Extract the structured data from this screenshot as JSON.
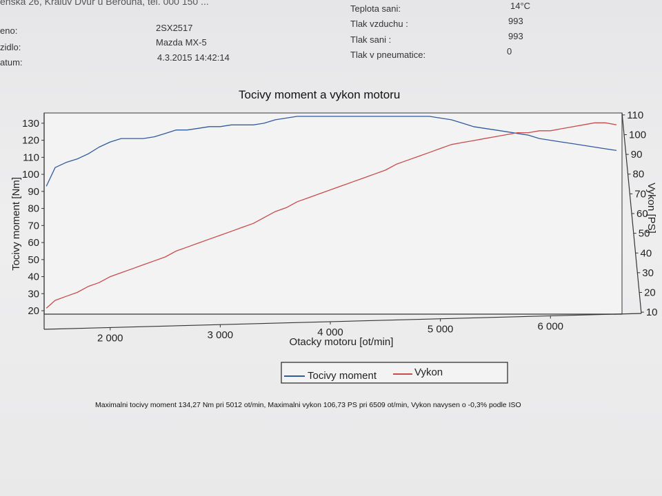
{
  "header": {
    "address_partial": "enska 26, Kraluv Dvur u Berouna, tel. 000 150 ...",
    "fields_left": [
      {
        "label": "eno:",
        "value": "2SX2517"
      },
      {
        "label": "zidlo:",
        "value": "Mazda MX-5"
      },
      {
        "label": "atum:",
        "value": "4.3.2015 14:42:14"
      }
    ],
    "fields_right": [
      {
        "label": "Teplota sani:",
        "value": "14°C"
      },
      {
        "label": "Tlak vzduchu :",
        "value": "993"
      },
      {
        "label": "Tlak sani :",
        "value": "993"
      },
      {
        "label": "Tlak v pneumatice:",
        "value": "0"
      }
    ]
  },
  "chart_data": {
    "type": "line",
    "title": "Tocivy moment a vykon motoru",
    "xlabel": "Otacky motoru [ot/min]",
    "ylabel_left": "Tocivy moment [Nm]",
    "ylabel_right": "Vykon [PS]",
    "xlim": [
      1400,
      6650
    ],
    "ylim_left": [
      18,
      136
    ],
    "ylim_right": [
      9,
      111
    ],
    "x_ticks": [
      2000,
      3000,
      4000,
      5000,
      6000
    ],
    "x_tick_labels": [
      "2 000",
      "3 000",
      "4 000",
      "5 000",
      "6 000"
    ],
    "y_left_ticks": [
      20,
      30,
      40,
      50,
      60,
      70,
      80,
      90,
      100,
      110,
      120,
      130
    ],
    "y_right_ticks": [
      10,
      20,
      30,
      40,
      50,
      60,
      70,
      80,
      90,
      100,
      110
    ],
    "legend_position": "bottom-center",
    "series": [
      {
        "name": "Tocivy moment",
        "color": "#2f5a9c",
        "axis": "left",
        "x": [
          1420,
          1500,
          1600,
          1700,
          1800,
          1900,
          2000,
          2100,
          2200,
          2300,
          2400,
          2500,
          2600,
          2700,
          2800,
          2900,
          3000,
          3100,
          3200,
          3300,
          3400,
          3500,
          3600,
          3700,
          3800,
          3900,
          4000,
          4100,
          4200,
          4300,
          4400,
          4500,
          4600,
          4700,
          4800,
          4900,
          5000,
          5100,
          5200,
          5300,
          5400,
          5500,
          5600,
          5700,
          5800,
          5900,
          6000,
          6100,
          6200,
          6300,
          6400,
          6500,
          6600
        ],
        "values": [
          93,
          104,
          107,
          109,
          112,
          116,
          119,
          121,
          121,
          121,
          122,
          124,
          126,
          126,
          127,
          128,
          128,
          129,
          129,
          129,
          130,
          132,
          133,
          134,
          134,
          134,
          134,
          134,
          134,
          134,
          134,
          134,
          134,
          134,
          134,
          134,
          133,
          132,
          130,
          128,
          127,
          126,
          125,
          124,
          123,
          121,
          120,
          119,
          118,
          117,
          116,
          115,
          114
        ]
      },
      {
        "name": "Vykon",
        "color": "#c94a4a",
        "axis": "right",
        "x": [
          1420,
          1500,
          1600,
          1700,
          1800,
          1900,
          2000,
          2100,
          2200,
          2300,
          2400,
          2500,
          2600,
          2700,
          2800,
          2900,
          3000,
          3100,
          3200,
          3300,
          3400,
          3500,
          3600,
          3700,
          3800,
          3900,
          4000,
          4100,
          4200,
          4300,
          4400,
          4500,
          4600,
          4700,
          4800,
          4900,
          5000,
          5100,
          5200,
          5300,
          5400,
          5500,
          5600,
          5700,
          5800,
          5900,
          6000,
          6100,
          6200,
          6300,
          6400,
          6500,
          6600
        ],
        "values": [
          12,
          16,
          18,
          20,
          23,
          25,
          28,
          30,
          32,
          34,
          36,
          38,
          41,
          43,
          45,
          47,
          49,
          51,
          53,
          55,
          58,
          61,
          63,
          66,
          68,
          70,
          72,
          74,
          76,
          78,
          80,
          82,
          85,
          87,
          89,
          91,
          93,
          95,
          96,
          97,
          98,
          99,
          100,
          101,
          101,
          102,
          102,
          103,
          104,
          105,
          106,
          106,
          105
        ]
      }
    ]
  },
  "footnote": "Maximalni tocivy moment 134,27 Nm pri 5012 ot/min,  Maximalni vykon 106,73 PS pri 6509 ot/min,  Vykon navysen o -0,3% podle ISO"
}
